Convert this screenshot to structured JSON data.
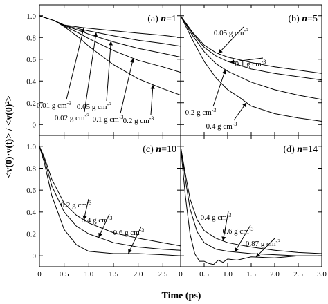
{
  "chart_data": {
    "type": "line",
    "xlabel": "Time (ps)",
    "ylabel": "<v(0)·v(t)> / <v(0)²>",
    "xlim": [
      0,
      3.0
    ],
    "ylim": [
      -0.1,
      1.1
    ],
    "x_ticks": [
      "0",
      "0.5",
      "1.0",
      "1.5",
      "2.0",
      "2.5",
      "3.0"
    ],
    "y_ticks": [
      "0",
      "0.2",
      "0.4",
      "0.6",
      "0.8",
      "1.0"
    ],
    "annotation_unit": "g cm",
    "annotation_exp": "-3",
    "panels": [
      {
        "label": "(a)",
        "n_text": "n",
        "eq_text": "=1",
        "series": [
          {
            "name": "0.01 g cm-3",
            "x": [
              0,
              0.3,
              0.5,
              0.8,
              1.0,
              1.5,
              2.0,
              2.5,
              3.0
            ],
            "y": [
              1.0,
              0.955,
              0.915,
              0.895,
              0.885,
              0.862,
              0.84,
              0.82,
              0.8
            ]
          },
          {
            "name": "0.02 g cm-3",
            "x": [
              0,
              0.3,
              0.5,
              0.8,
              1.0,
              1.5,
              2.0,
              2.5,
              3.0
            ],
            "y": [
              1.0,
              0.955,
              0.913,
              0.88,
              0.86,
              0.815,
              0.775,
              0.745,
              0.72
            ]
          },
          {
            "name": "0.05 g cm-3",
            "x": [
              0,
              0.3,
              0.5,
              0.8,
              1.0,
              1.5,
              2.0,
              2.5,
              3.0
            ],
            "y": [
              1.0,
              0.955,
              0.91,
              0.865,
              0.83,
              0.76,
              0.7,
              0.655,
              0.62
            ]
          },
          {
            "name": "0.1 g cm-3",
            "x": [
              0,
              0.3,
              0.5,
              0.8,
              1.0,
              1.5,
              2.0,
              2.5,
              3.0
            ],
            "y": [
              1.0,
              0.955,
              0.905,
              0.84,
              0.79,
              0.68,
              0.59,
              0.53,
              0.48
            ]
          },
          {
            "name": "0.2 g cm-3",
            "x": [
              0,
              0.3,
              0.5,
              0.8,
              1.0,
              1.5,
              2.0,
              2.5,
              3.0
            ],
            "y": [
              1.0,
              0.955,
              0.9,
              0.8,
              0.72,
              0.55,
              0.42,
              0.33,
              0.27
            ]
          }
        ]
      },
      {
        "label": "(b)",
        "n_text": "n",
        "eq_text": "=5",
        "series": [
          {
            "name": "0.05 g cm-3",
            "x": [
              0,
              0.25,
              0.5,
              0.75,
              1.0,
              1.5,
              2.0,
              2.5,
              3.0
            ],
            "y": [
              1.0,
              0.85,
              0.73,
              0.66,
              0.62,
              0.57,
              0.53,
              0.5,
              0.47
            ]
          },
          {
            "name": "0.1 g cm-3",
            "x": [
              0,
              0.25,
              0.5,
              0.75,
              1.0,
              1.5,
              2.0,
              2.5,
              3.0
            ],
            "y": [
              1.0,
              0.84,
              0.71,
              0.63,
              0.58,
              0.51,
              0.47,
              0.44,
              0.41
            ]
          },
          {
            "name": "0.2 g cm-3",
            "x": [
              0,
              0.25,
              0.5,
              0.75,
              1.0,
              1.5,
              2.0,
              2.5,
              3.0
            ],
            "y": [
              1.0,
              0.82,
              0.67,
              0.56,
              0.49,
              0.39,
              0.32,
              0.27,
              0.23
            ]
          },
          {
            "name": "0.4 g cm-3",
            "x": [
              0,
              0.25,
              0.5,
              0.75,
              1.0,
              1.25,
              1.5,
              2.0,
              2.5,
              3.0
            ],
            "y": [
              1.0,
              0.78,
              0.58,
              0.43,
              0.32,
              0.25,
              0.17,
              0.1,
              0.06,
              0.03
            ]
          }
        ]
      },
      {
        "label": "(c)",
        "n_text": "n",
        "eq_text": "=10",
        "series": [
          {
            "name": "0.2 g cm-3",
            "x": [
              0,
              0.1,
              0.25,
              0.5,
              0.75,
              1.0,
              1.5,
              2.0,
              2.5,
              3.0
            ],
            "y": [
              1.0,
              0.9,
              0.7,
              0.48,
              0.37,
              0.3,
              0.21,
              0.16,
              0.12,
              0.09
            ]
          },
          {
            "name": "0.4 g cm-3",
            "x": [
              0,
              0.1,
              0.25,
              0.5,
              0.75,
              1.0,
              1.5,
              2.0,
              2.5,
              3.0
            ],
            "y": [
              1.0,
              0.88,
              0.64,
              0.4,
              0.27,
              0.2,
              0.12,
              0.08,
              0.06,
              0.05
            ]
          },
          {
            "name": "0.6 g cm-3",
            "x": [
              0,
              0.1,
              0.25,
              0.5,
              0.75,
              1.0,
              1.5,
              2.0,
              2.5,
              3.0
            ],
            "y": [
              1.0,
              0.85,
              0.55,
              0.24,
              0.1,
              0.04,
              0.02,
              0.02,
              0.01,
              0.0
            ]
          }
        ]
      },
      {
        "label": "(d)",
        "n_text": "n",
        "eq_text": "=14",
        "series": [
          {
            "name": "0.4 g cm-3",
            "x": [
              0,
              0.1,
              0.2,
              0.35,
              0.5,
              0.75,
              1.0,
              1.5,
              2.0,
              2.5,
              3.0
            ],
            "y": [
              1.0,
              0.75,
              0.52,
              0.33,
              0.23,
              0.16,
              0.12,
              0.08,
              0.05,
              0.03,
              0.02
            ]
          },
          {
            "name": "0.6 g cm-3",
            "x": [
              0,
              0.1,
              0.2,
              0.35,
              0.5,
              0.75,
              1.0,
              1.5,
              2.0,
              2.5,
              3.0
            ],
            "y": [
              1.0,
              0.7,
              0.43,
              0.22,
              0.12,
              0.06,
              0.04,
              0.02,
              0.01,
              0.0,
              0.0
            ]
          },
          {
            "name": "0.87 g cm-3",
            "x": [
              0,
              0.1,
              0.2,
              0.3,
              0.4,
              0.5,
              0.6,
              0.7,
              0.8,
              0.9,
              1.0,
              1.2,
              1.5,
              2.0,
              2.5,
              3.0
            ],
            "y": [
              1.0,
              0.55,
              0.2,
              0.02,
              -0.05,
              -0.05,
              -0.07,
              -0.08,
              -0.04,
              -0.06,
              -0.03,
              -0.04,
              -0.01,
              -0.02,
              0.0,
              0.0
            ]
          }
        ]
      }
    ]
  }
}
